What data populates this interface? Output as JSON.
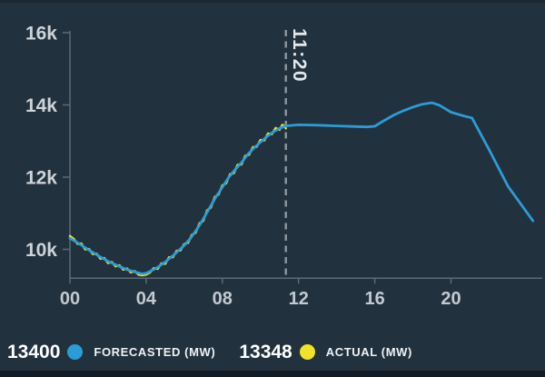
{
  "chart_data": {
    "type": "line",
    "title": "",
    "grid": "off",
    "legend_position": "bottom",
    "x_axis": {
      "label": "",
      "tick_hours": [
        0,
        4,
        8,
        12,
        16,
        20
      ],
      "tick_labels": [
        "00",
        "04",
        "08",
        "12",
        "16",
        "20"
      ],
      "range_hours": [
        0,
        24.6
      ]
    },
    "y_axis": {
      "label": "",
      "tick_values": [
        10000,
        12000,
        14000,
        16000
      ],
      "tick_labels": [
        "10k",
        "12k",
        "14k",
        "16k"
      ],
      "range": [
        9200,
        16000
      ]
    },
    "now_marker": {
      "hour": 11.333,
      "label": "11:20"
    },
    "series": [
      {
        "name": "FORECASTED (MW)",
        "color": "#2B9CD8",
        "current_value": 13400,
        "points": [
          [
            0,
            10310
          ],
          [
            0.5,
            10150
          ],
          [
            1,
            9980
          ],
          [
            1.5,
            9820
          ],
          [
            2,
            9670
          ],
          [
            2.5,
            9550
          ],
          [
            3,
            9440
          ],
          [
            3.5,
            9360
          ],
          [
            3.8,
            9320
          ],
          [
            4,
            9340
          ],
          [
            4.5,
            9470
          ],
          [
            5,
            9650
          ],
          [
            5.5,
            9870
          ],
          [
            6,
            10110
          ],
          [
            6.33,
            10310
          ],
          [
            6.67,
            10560
          ],
          [
            7,
            10840
          ],
          [
            7.33,
            11150
          ],
          [
            7.67,
            11460
          ],
          [
            8,
            11720
          ],
          [
            8.33,
            11990
          ],
          [
            8.67,
            12210
          ],
          [
            9,
            12400
          ],
          [
            9.33,
            12630
          ],
          [
            9.67,
            12810
          ],
          [
            10,
            12970
          ],
          [
            10.33,
            13120
          ],
          [
            10.67,
            13250
          ],
          [
            11,
            13350
          ],
          [
            11.33,
            13420
          ],
          [
            12,
            13450
          ],
          [
            13,
            13440
          ],
          [
            14,
            13420
          ],
          [
            15,
            13400
          ],
          [
            15.6,
            13390
          ],
          [
            16,
            13410
          ],
          [
            16.5,
            13570
          ],
          [
            17,
            13720
          ],
          [
            17.5,
            13840
          ],
          [
            18,
            13940
          ],
          [
            18.5,
            14020
          ],
          [
            19,
            14060
          ],
          [
            19.4,
            13990
          ],
          [
            20,
            13800
          ],
          [
            20.7,
            13690
          ],
          [
            21.1,
            13640
          ],
          [
            22,
            12760
          ],
          [
            23,
            11740
          ],
          [
            24.3,
            10790
          ]
        ]
      },
      {
        "name": "ACTUAL (MW)",
        "color": "#F1E227",
        "current_value": 13348,
        "points": [
          [
            0,
            10370
          ],
          [
            0.2,
            10290
          ],
          [
            0.4,
            10150
          ],
          [
            0.6,
            10160
          ],
          [
            0.8,
            10000
          ],
          [
            1,
            10010
          ],
          [
            1.2,
            9870
          ],
          [
            1.4,
            9880
          ],
          [
            1.6,
            9740
          ],
          [
            1.8,
            9760
          ],
          [
            2,
            9620
          ],
          [
            2.2,
            9650
          ],
          [
            2.4,
            9530
          ],
          [
            2.6,
            9560
          ],
          [
            2.8,
            9440
          ],
          [
            3,
            9470
          ],
          [
            3.2,
            9360
          ],
          [
            3.4,
            9400
          ],
          [
            3.6,
            9300
          ],
          [
            3.8,
            9280
          ],
          [
            4,
            9300
          ],
          [
            4.2,
            9360
          ],
          [
            4.4,
            9480
          ],
          [
            4.6,
            9460
          ],
          [
            4.8,
            9610
          ],
          [
            5,
            9600
          ],
          [
            5.2,
            9780
          ],
          [
            5.4,
            9780
          ],
          [
            5.6,
            9960
          ],
          [
            5.8,
            9970
          ],
          [
            6,
            10150
          ],
          [
            6.2,
            10180
          ],
          [
            6.4,
            10400
          ],
          [
            6.6,
            10460
          ],
          [
            6.8,
            10720
          ],
          [
            7,
            10790
          ],
          [
            7.2,
            11080
          ],
          [
            7.4,
            11160
          ],
          [
            7.6,
            11450
          ],
          [
            7.8,
            11520
          ],
          [
            8,
            11770
          ],
          [
            8.2,
            11830
          ],
          [
            8.4,
            12080
          ],
          [
            8.6,
            12110
          ],
          [
            8.8,
            12340
          ],
          [
            9,
            12350
          ],
          [
            9.2,
            12590
          ],
          [
            9.4,
            12620
          ],
          [
            9.6,
            12830
          ],
          [
            9.8,
            12840
          ],
          [
            10,
            13030
          ],
          [
            10.2,
            13020
          ],
          [
            10.4,
            13210
          ],
          [
            10.6,
            13190
          ],
          [
            10.8,
            13360
          ],
          [
            11,
            13310
          ],
          [
            11.15,
            13450
          ],
          [
            11.25,
            13420
          ],
          [
            11.333,
            13348
          ]
        ]
      }
    ]
  },
  "legend": {
    "items": [
      {
        "value": "13400",
        "label": "FORECASTED (MW)",
        "color": "#2B9CD8"
      },
      {
        "value": "13348",
        "label": "ACTUAL (MW)",
        "color": "#F1E227"
      }
    ]
  },
  "colors": {
    "background": "#22313E",
    "axis": "#5C6A75",
    "now_line": "#8A949B",
    "forecast": "#2B9CD8",
    "actual": "#F1E227"
  }
}
